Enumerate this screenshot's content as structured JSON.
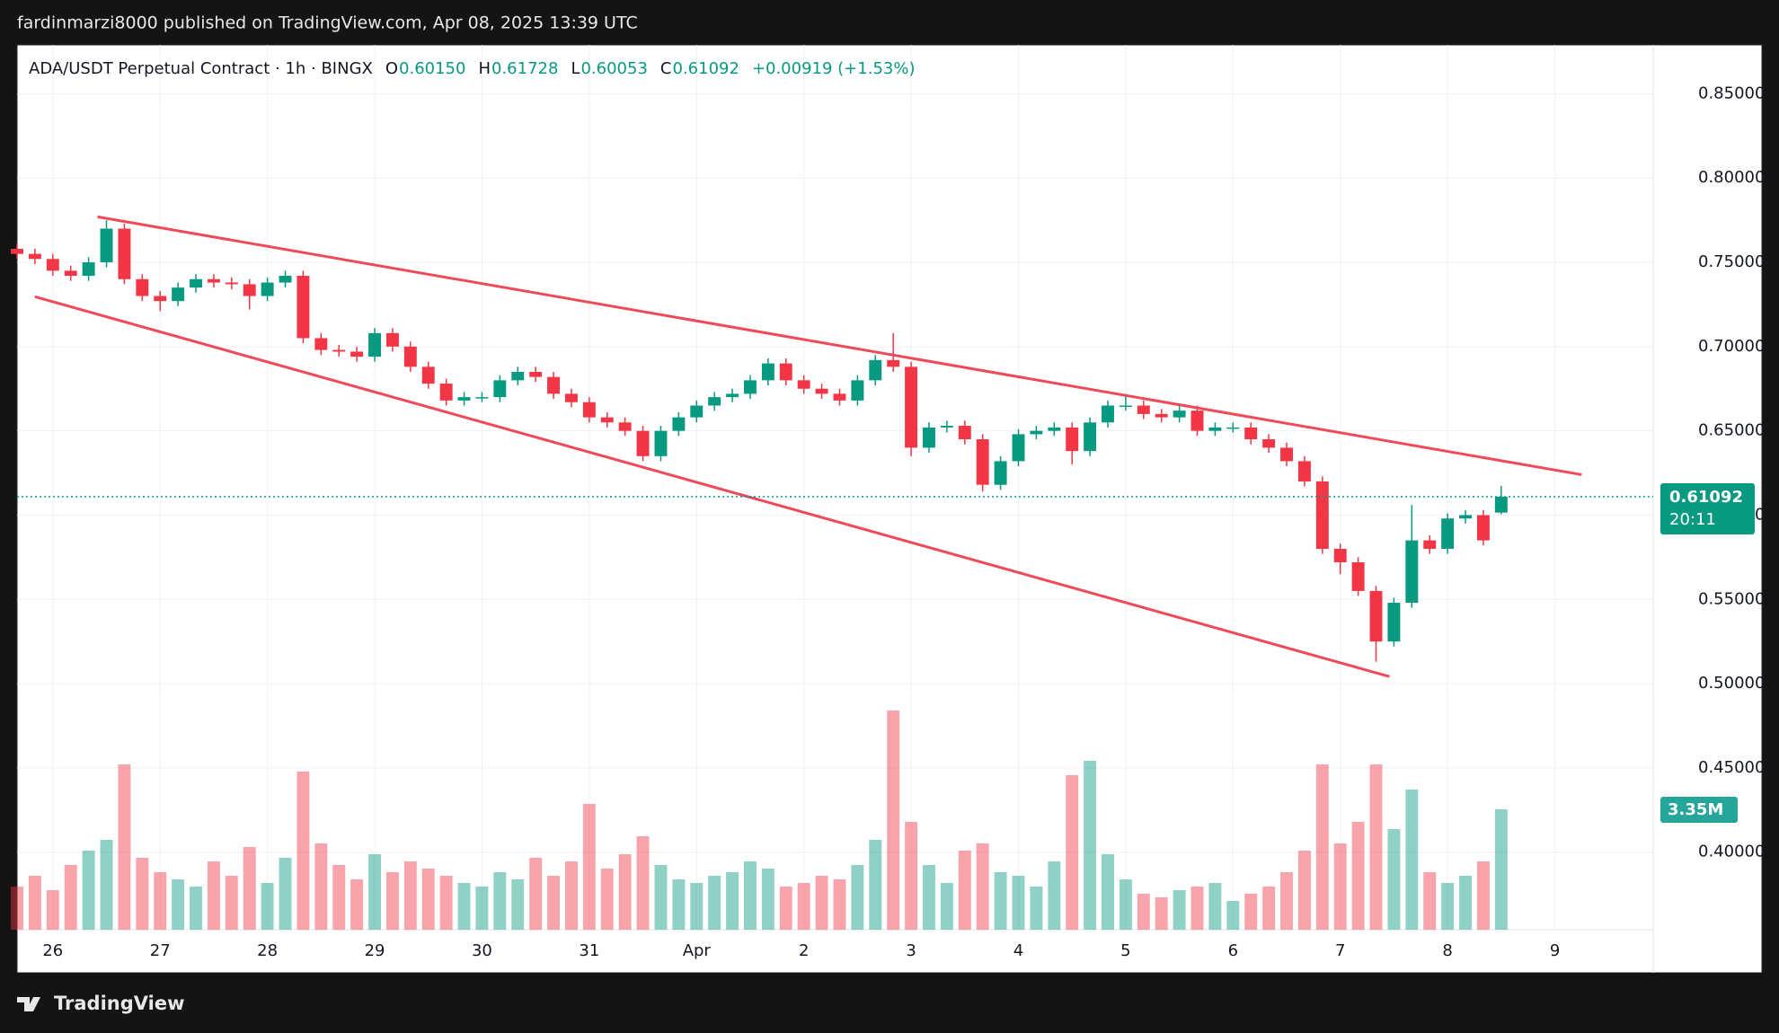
{
  "header": {
    "publisher": "fardinmarzi8000 published on TradingView.com, Apr 08, 2025 13:39 UTC"
  },
  "footer": {
    "brand": "TradingView"
  },
  "chart_data": {
    "type": "candlestick",
    "legend": {
      "symbol": "ADA/USDT Perpetual Contract · 1h · BINGX",
      "o": "O",
      "open": "0.60150",
      "h": "H",
      "high": "0.61728",
      "l": "L",
      "low": "0.60053",
      "c": "C",
      "close": "0.61092",
      "change": "+0.00919 (+1.53%)"
    },
    "last_price": {
      "value": 0.61092,
      "label": "0.61092"
    },
    "countdown": "20:11",
    "volume_label": "3.35M",
    "up_color": "#089981",
    "down_color": "#f23645",
    "xlim": [
      -8,
      358
    ],
    "ylim": [
      0.354,
      0.879
    ],
    "grid": true,
    "xticks": [
      {
        "value": 0,
        "label": "26"
      },
      {
        "value": 24,
        "label": "27"
      },
      {
        "value": 48,
        "label": "28"
      },
      {
        "value": 72,
        "label": "29"
      },
      {
        "value": 96,
        "label": "30"
      },
      {
        "value": 120,
        "label": "31"
      },
      {
        "value": 144,
        "label": "Apr"
      },
      {
        "value": 168,
        "label": "2"
      },
      {
        "value": 192,
        "label": "3"
      },
      {
        "value": 216,
        "label": "4"
      },
      {
        "value": 240,
        "label": "5"
      },
      {
        "value": 264,
        "label": "6"
      },
      {
        "value": 288,
        "label": "7"
      },
      {
        "value": 312,
        "label": "8"
      },
      {
        "value": 336,
        "label": "9"
      }
    ],
    "yticks": [
      {
        "value": 0.4,
        "label": "0.40000"
      },
      {
        "value": 0.45,
        "label": "0.45000"
      },
      {
        "value": 0.5,
        "label": "0.50000"
      },
      {
        "value": 0.55,
        "label": "0.55000"
      },
      {
        "value": 0.6,
        "label": "0.60000"
      },
      {
        "value": 0.65,
        "label": "0.65000"
      },
      {
        "value": 0.7,
        "label": "0.70000"
      },
      {
        "value": 0.75,
        "label": "0.75000"
      },
      {
        "value": 0.8,
        "label": "0.80000"
      },
      {
        "value": 0.85,
        "label": "0.85000"
      }
    ],
    "trendlines": [
      {
        "color": "#ef4a5a",
        "x": [
          10,
          342
        ],
        "y": [
          0.777,
          0.624
        ]
      },
      {
        "color": "#ef4a5a",
        "x": [
          -4,
          299
        ],
        "y": [
          0.7296,
          0.5042
        ]
      }
    ],
    "x": [
      -8,
      -4,
      0,
      4,
      8,
      12,
      16,
      20,
      24,
      28,
      32,
      36,
      40,
      44,
      48,
      52,
      56,
      60,
      64,
      68,
      72,
      76,
      80,
      84,
      88,
      92,
      96,
      100,
      104,
      108,
      112,
      116,
      120,
      124,
      128,
      132,
      136,
      140,
      144,
      148,
      152,
      156,
      160,
      164,
      168,
      172,
      176,
      180,
      184,
      188,
      192,
      196,
      200,
      204,
      208,
      212,
      216,
      220,
      224,
      228,
      232,
      236,
      240,
      244,
      248,
      252,
      256,
      260,
      264,
      268,
      272,
      276,
      280,
      284,
      288,
      292,
      296,
      300,
      304,
      308,
      312,
      316,
      320,
      324
    ],
    "open": [
      0.758,
      0.755,
      0.752,
      0.745,
      0.742,
      0.75,
      0.77,
      0.74,
      0.73,
      0.727,
      0.735,
      0.74,
      0.738,
      0.737,
      0.73,
      0.738,
      0.742,
      0.705,
      0.698,
      0.697,
      0.694,
      0.708,
      0.7,
      0.688,
      0.678,
      0.668,
      0.67,
      0.67,
      0.68,
      0.685,
      0.682,
      0.672,
      0.667,
      0.658,
      0.655,
      0.65,
      0.635,
      0.65,
      0.658,
      0.665,
      0.67,
      0.672,
      0.68,
      0.69,
      0.68,
      0.675,
      0.672,
      0.668,
      0.68,
      0.692,
      0.688,
      0.64,
      0.652,
      0.653,
      0.645,
      0.618,
      0.632,
      0.648,
      0.65,
      0.652,
      0.638,
      0.655,
      0.665,
      0.665,
      0.66,
      0.658,
      0.662,
      0.65,
      0.652,
      0.652,
      0.645,
      0.64,
      0.632,
      0.62,
      0.58,
      0.572,
      0.555,
      0.525,
      0.548,
      0.585,
      0.58,
      0.598,
      0.6,
      0.6015
    ],
    "high": [
      0.761,
      0.758,
      0.755,
      0.748,
      0.753,
      0.775,
      0.773,
      0.743,
      0.733,
      0.738,
      0.743,
      0.743,
      0.741,
      0.74,
      0.741,
      0.745,
      0.745,
      0.708,
      0.701,
      0.7,
      0.711,
      0.711,
      0.703,
      0.691,
      0.681,
      0.673,
      0.673,
      0.683,
      0.688,
      0.688,
      0.685,
      0.675,
      0.67,
      0.661,
      0.658,
      0.653,
      0.653,
      0.661,
      0.668,
      0.673,
      0.675,
      0.683,
      0.693,
      0.693,
      0.683,
      0.678,
      0.675,
      0.683,
      0.695,
      0.708,
      0.691,
      0.655,
      0.656,
      0.656,
      0.648,
      0.635,
      0.651,
      0.653,
      0.655,
      0.655,
      0.658,
      0.668,
      0.672,
      0.668,
      0.663,
      0.665,
      0.665,
      0.655,
      0.655,
      0.655,
      0.648,
      0.643,
      0.635,
      0.623,
      0.583,
      0.575,
      0.558,
      0.551,
      0.606,
      0.588,
      0.601,
      0.603,
      0.603,
      0.61728
    ],
    "low": [
      0.752,
      0.749,
      0.742,
      0.739,
      0.739,
      0.747,
      0.737,
      0.727,
      0.721,
      0.724,
      0.732,
      0.735,
      0.734,
      0.722,
      0.727,
      0.735,
      0.702,
      0.695,
      0.694,
      0.691,
      0.691,
      0.697,
      0.685,
      0.675,
      0.665,
      0.665,
      0.667,
      0.667,
      0.677,
      0.679,
      0.669,
      0.664,
      0.655,
      0.652,
      0.647,
      0.632,
      0.632,
      0.647,
      0.655,
      0.662,
      0.667,
      0.669,
      0.677,
      0.677,
      0.672,
      0.669,
      0.665,
      0.665,
      0.677,
      0.685,
      0.635,
      0.637,
      0.649,
      0.642,
      0.614,
      0.615,
      0.629,
      0.645,
      0.647,
      0.63,
      0.635,
      0.652,
      0.662,
      0.657,
      0.655,
      0.655,
      0.647,
      0.647,
      0.649,
      0.642,
      0.637,
      0.629,
      0.617,
      0.577,
      0.565,
      0.552,
      0.513,
      0.522,
      0.545,
      0.577,
      0.577,
      0.595,
      0.582,
      0.60053
    ],
    "close": [
      0.755,
      0.752,
      0.745,
      0.742,
      0.75,
      0.77,
      0.74,
      0.73,
      0.727,
      0.735,
      0.74,
      0.738,
      0.737,
      0.73,
      0.738,
      0.742,
      0.705,
      0.698,
      0.697,
      0.694,
      0.708,
      0.7,
      0.688,
      0.678,
      0.668,
      0.67,
      0.67,
      0.68,
      0.685,
      0.682,
      0.672,
      0.667,
      0.658,
      0.655,
      0.65,
      0.635,
      0.65,
      0.658,
      0.665,
      0.67,
      0.672,
      0.68,
      0.69,
      0.68,
      0.675,
      0.672,
      0.668,
      0.68,
      0.692,
      0.688,
      0.64,
      0.652,
      0.653,
      0.645,
      0.618,
      0.632,
      0.648,
      0.65,
      0.652,
      0.638,
      0.655,
      0.665,
      0.665,
      0.66,
      0.658,
      0.662,
      0.65,
      0.652,
      0.652,
      0.645,
      0.64,
      0.632,
      0.62,
      0.58,
      0.572,
      0.555,
      0.525,
      0.548,
      0.585,
      0.58,
      0.598,
      0.6,
      0.585,
      0.61092
    ],
    "volume": [
      1.2,
      1.5,
      1.1,
      1.8,
      2.2,
      2.5,
      4.6,
      2.0,
      1.6,
      1.4,
      1.2,
      1.9,
      1.5,
      2.3,
      1.3,
      2.0,
      4.4,
      2.4,
      1.8,
      1.4,
      2.1,
      1.6,
      1.9,
      1.7,
      1.5,
      1.3,
      1.2,
      1.6,
      1.4,
      2.0,
      1.5,
      1.9,
      3.5,
      1.7,
      2.1,
      2.6,
      1.8,
      1.4,
      1.3,
      1.5,
      1.6,
      1.9,
      1.7,
      1.2,
      1.3,
      1.5,
      1.4,
      1.8,
      2.5,
      6.1,
      3.0,
      1.8,
      1.3,
      2.2,
      2.4,
      1.6,
      1.5,
      1.2,
      1.9,
      4.3,
      4.7,
      2.1,
      1.4,
      1.0,
      0.9,
      1.1,
      1.2,
      1.3,
      0.8,
      1.0,
      1.2,
      1.6,
      2.2,
      4.6,
      2.4,
      3.0,
      4.6,
      2.8,
      3.9,
      1.6,
      1.3,
      1.5,
      1.9,
      3.35
    ]
  }
}
